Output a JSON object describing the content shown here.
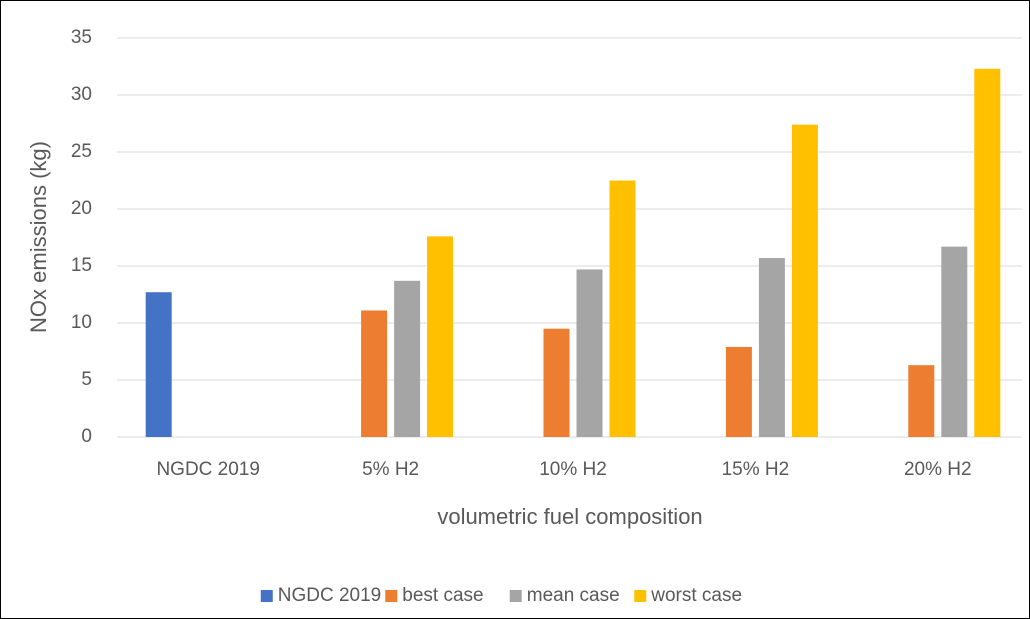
{
  "chart_data": {
    "type": "bar",
    "categories": [
      "NGDC 2019",
      "5% H2",
      "10% H2",
      "15% H2",
      "20% H2"
    ],
    "series": [
      {
        "name": "NGDC 2019",
        "color": "#4472c4",
        "values": [
          12.7,
          null,
          null,
          null,
          null
        ]
      },
      {
        "name": "best case",
        "color": "#ed7d31",
        "values": [
          null,
          11.1,
          9.5,
          7.9,
          6.3
        ]
      },
      {
        "name": "mean case",
        "color": "#a5a5a5",
        "values": [
          null,
          13.7,
          14.7,
          15.7,
          16.7
        ]
      },
      {
        "name": "worst case",
        "color": "#ffc000",
        "values": [
          null,
          17.6,
          22.5,
          27.4,
          32.3
        ]
      }
    ],
    "xlabel": "volumetric fuel composition",
    "ylabel": "NOx emissions (kg)",
    "ylim": [
      0,
      35
    ],
    "yticks": [
      0,
      5,
      10,
      15,
      20,
      25,
      30,
      35
    ],
    "grid": true,
    "legend": "bottom"
  }
}
